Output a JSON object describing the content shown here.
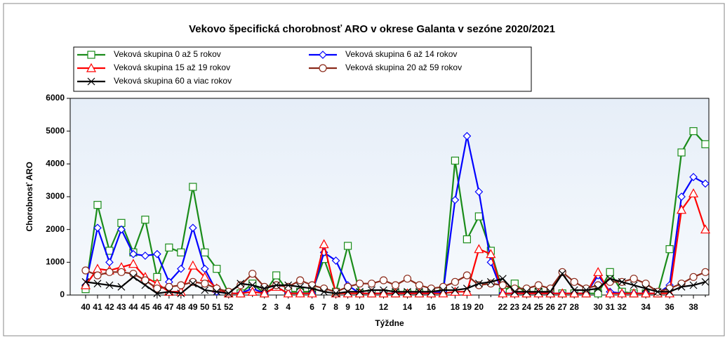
{
  "chart_data": {
    "type": "line",
    "title": "Vekovo špecifická chorobnosť ARO v okrese Galanta v sezóne 2020/2021",
    "x_label": "Týždne",
    "y_label": "Chorobnosť ARO",
    "categories": [
      "40",
      "41",
      "42",
      "43",
      "44",
      "45",
      "46",
      "47",
      "48",
      "49",
      "50",
      "51",
      "52",
      null,
      null,
      "2",
      "3",
      "4",
      null,
      "6",
      "7",
      "8",
      "9",
      "10",
      null,
      "12",
      null,
      "14",
      null,
      "16",
      null,
      "18",
      "19",
      "20",
      null,
      "22",
      "23",
      "24",
      "25",
      "26",
      "27",
      "28",
      null,
      "30",
      "31",
      "32",
      null,
      "34",
      null,
      "36",
      null,
      "38",
      null
    ],
    "ylim": [
      0,
      6000
    ],
    "yticks": [
      0,
      1000,
      2000,
      3000,
      4000,
      5000,
      6000
    ],
    "grid": false,
    "series": [
      {
        "name": "Veková skupina 0 až 5 rokov",
        "color": "#1a8c1a",
        "marker": "square",
        "values": [
          180,
          2750,
          1350,
          2200,
          1300,
          2300,
          550,
          1450,
          1300,
          3300,
          1300,
          800,
          50,
          50,
          350,
          50,
          600,
          100,
          100,
          100,
          1100,
          100,
          1500,
          50,
          50,
          50,
          50,
          50,
          50,
          50,
          100,
          4100,
          1700,
          2400,
          1350,
          100,
          350,
          50,
          100,
          50,
          50,
          50,
          50,
          50,
          700,
          100,
          50,
          50,
          50,
          1400,
          4350,
          5000,
          4600
        ]
      },
      {
        "name": "Veková skupina 6 až 14 rokov",
        "color": "#0000ff",
        "marker": "diamond",
        "values": [
          300,
          2050,
          1000,
          2000,
          1250,
          1200,
          1250,
          400,
          800,
          2050,
          800,
          100,
          50,
          50,
          200,
          50,
          250,
          50,
          50,
          50,
          1300,
          1050,
          300,
          50,
          50,
          50,
          50,
          50,
          50,
          50,
          100,
          2900,
          4850,
          3150,
          1000,
          50,
          50,
          50,
          50,
          50,
          50,
          50,
          50,
          600,
          100,
          50,
          50,
          50,
          50,
          300,
          3000,
          3600,
          3400
        ]
      },
      {
        "name": "Veková skupina 15 až 19 rokov",
        "color": "#ff0000",
        "marker": "triangle",
        "values": [
          300,
          800,
          750,
          850,
          950,
          550,
          350,
          100,
          100,
          900,
          550,
          200,
          50,
          50,
          100,
          50,
          250,
          50,
          50,
          50,
          1550,
          50,
          50,
          50,
          50,
          50,
          50,
          50,
          50,
          50,
          50,
          100,
          100,
          1400,
          1250,
          50,
          50,
          50,
          50,
          50,
          50,
          50,
          50,
          700,
          50,
          50,
          50,
          50,
          50,
          50,
          2600,
          3100,
          2000
        ]
      },
      {
        "name": "Veková skupina 20 až 59 rokov",
        "color": "#8b2a1a",
        "marker": "circle",
        "values": [
          750,
          600,
          700,
          700,
          650,
          450,
          200,
          250,
          300,
          400,
          350,
          200,
          100,
          300,
          650,
          250,
          300,
          250,
          450,
          300,
          200,
          100,
          250,
          350,
          350,
          450,
          300,
          500,
          300,
          200,
          250,
          400,
          600,
          300,
          350,
          300,
          200,
          200,
          300,
          200,
          700,
          400,
          200,
          300,
          400,
          400,
          500,
          350,
          100,
          200,
          350,
          550,
          700
        ]
      },
      {
        "name": "Veková skupina 60 a viac rokov",
        "color": "#000000",
        "marker": "x",
        "values": [
          400,
          350,
          300,
          250,
          550,
          300,
          50,
          100,
          50,
          350,
          150,
          100,
          50,
          350,
          300,
          200,
          300,
          300,
          250,
          200,
          100,
          50,
          100,
          100,
          150,
          150,
          100,
          100,
          100,
          100,
          150,
          150,
          200,
          350,
          400,
          500,
          100,
          100,
          100,
          100,
          650,
          150,
          150,
          200,
          500,
          400,
          300,
          200,
          100,
          100,
          250,
          300,
          400
        ]
      }
    ]
  }
}
